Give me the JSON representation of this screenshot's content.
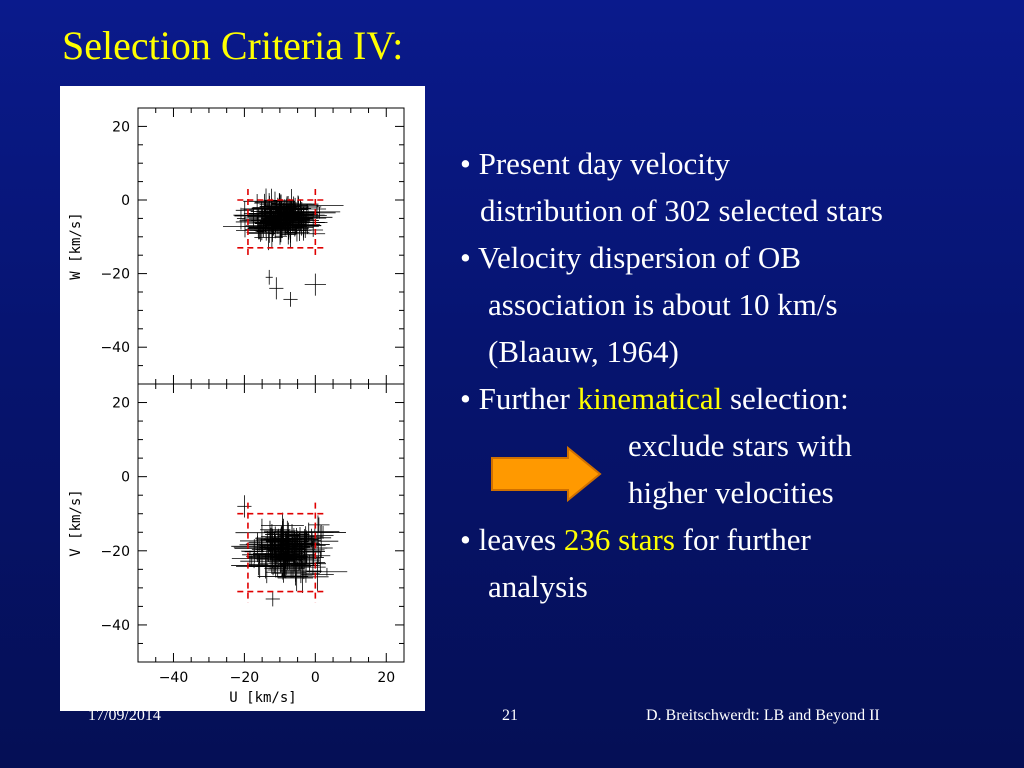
{
  "slide": {
    "title": "Selection Criteria IV:",
    "bullets": {
      "b1_line1": "• Present day velocity",
      "b1_line2": "distribution of 302 selected stars",
      "b2_line1": "• Velocity dispersion of OB",
      "b2_line2": "association is about 10 km/s",
      "b2_line3": "(Blaauw, 1964)",
      "b3_pre": "• Further ",
      "b3_hl": "kinematical",
      "b3_post": " selection:",
      "b3_line2": "exclude stars with",
      "b3_line3": "higher velocities",
      "b4_pre": "• leaves ",
      "b4_hl": "236 stars",
      "b4_post": " for further",
      "b4_line2": "analysis"
    },
    "arrow_icon": "right-arrow-icon",
    "colors": {
      "background": "#061470",
      "title": "#ffff00",
      "highlight": "#ffff00",
      "arrow": "#ff9900"
    }
  },
  "footer": {
    "date": "17/09/2014",
    "page": "21",
    "author": "D. Breitschwerdt: LB and Beyond II"
  },
  "chart_data": [
    {
      "type": "scatter",
      "panel": "top",
      "xlabel": "",
      "ylabel": "W [km/s]",
      "xlim": [
        -50,
        25
      ],
      "ylim": [
        -50,
        25
      ],
      "yticks": [
        20,
        0,
        -20,
        -40
      ],
      "box": {
        "x": [
          -19,
          0
        ],
        "y": [
          -13,
          0
        ]
      },
      "center": [
        -9,
        -5
      ]
    },
    {
      "type": "scatter",
      "panel": "bottom",
      "xlabel": "U [km/s]",
      "ylabel": "V [km/s]",
      "xlim": [
        -50,
        25
      ],
      "ylim": [
        -50,
        25
      ],
      "xticks": [
        -40,
        -20,
        0,
        20
      ],
      "yticks": [
        20,
        0,
        -20,
        -40
      ],
      "box": {
        "x": [
          -19,
          0
        ],
        "y": [
          -31,
          -10
        ]
      },
      "center": [
        -9,
        -20
      ]
    }
  ]
}
